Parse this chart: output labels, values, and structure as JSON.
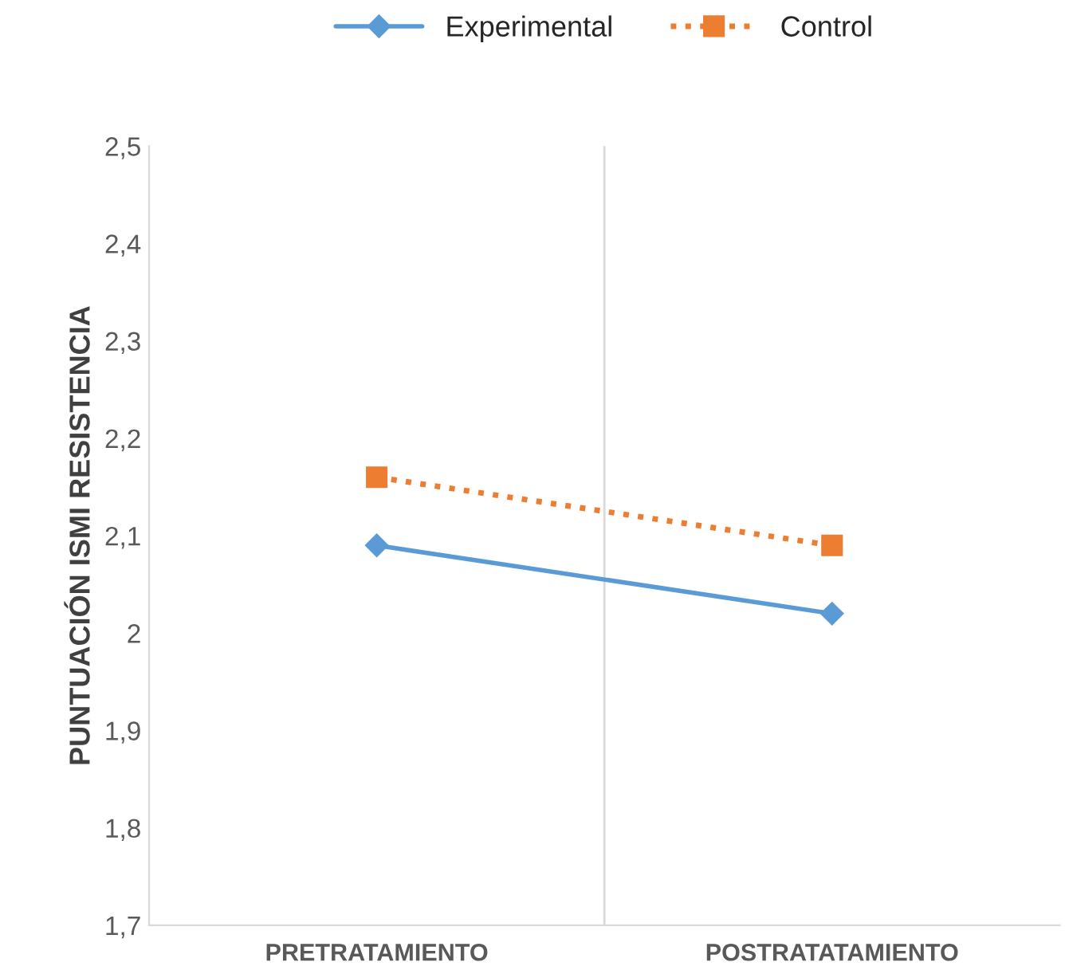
{
  "chart_data": {
    "type": "line",
    "ylabel": "PUNTUACIÓN ISMI RESISTENCIA",
    "categories": [
      "PRETRATAMIENTO",
      "POSTRATATAMIENTO"
    ],
    "series": [
      {
        "name": "Experimental",
        "color": "#5b9bd5",
        "values": [
          2.09,
          2.02
        ],
        "marker": "diamond",
        "line_style": "solid"
      },
      {
        "name": "Control",
        "color": "#ed7d31",
        "values": [
          2.16,
          2.09
        ],
        "marker": "square",
        "line_style": "dotted"
      }
    ],
    "ylim": [
      1.7,
      2.5
    ],
    "yticks": [
      {
        "value": 1.7,
        "label": "1,7"
      },
      {
        "value": 1.8,
        "label": "1,8"
      },
      {
        "value": 1.9,
        "label": "1,9"
      },
      {
        "value": 2,
        "label": "2"
      },
      {
        "value": 2.1,
        "label": "2,1"
      },
      {
        "value": 2.2,
        "label": "2,2"
      },
      {
        "value": 2.3,
        "label": "2,3"
      },
      {
        "value": 2.4,
        "label": "2,4"
      },
      {
        "value": 2.5,
        "label": "2,5"
      }
    ],
    "grid": "x",
    "legend": "top"
  }
}
